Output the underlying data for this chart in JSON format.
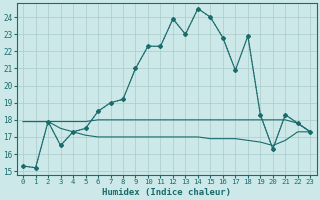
{
  "xlabel": "Humidex (Indice chaleur)",
  "bg_color": "#cce8e8",
  "grid_color": "#aacccc",
  "line_color": "#1a6b6b",
  "xlim": [
    -0.5,
    23.5
  ],
  "ylim": [
    14.8,
    24.8
  ],
  "yticks": [
    15,
    16,
    17,
    18,
    19,
    20,
    21,
    22,
    23,
    24
  ],
  "xticks": [
    0,
    1,
    2,
    3,
    4,
    5,
    6,
    7,
    8,
    9,
    10,
    11,
    12,
    13,
    14,
    15,
    16,
    17,
    18,
    19,
    20,
    21,
    22,
    23
  ],
  "series": [
    {
      "x": [
        0,
        1,
        2,
        3,
        4,
        5,
        6,
        7,
        8,
        9,
        10,
        11,
        12,
        13,
        14,
        15,
        16,
        17,
        18,
        19,
        20,
        21,
        22,
        23
      ],
      "y": [
        15.3,
        15.2,
        17.9,
        16.5,
        17.3,
        17.5,
        18.5,
        19.0,
        19.2,
        21.0,
        22.3,
        22.3,
        23.9,
        23.0,
        24.5,
        24.0,
        22.8,
        20.9,
        22.9,
        18.3,
        16.3,
        18.3,
        17.8,
        17.3
      ],
      "marker": "D",
      "markersize": 2.0,
      "linewidth": 0.8,
      "dotted": false
    },
    {
      "x": [
        0,
        1,
        2,
        3,
        4,
        5,
        6,
        7,
        8,
        9,
        10,
        11,
        12,
        13,
        14,
        15,
        16,
        17,
        18,
        19,
        20,
        21,
        22,
        23
      ],
      "y": [
        15.3,
        15.2,
        17.9,
        16.5,
        17.3,
        17.5,
        18.5,
        19.0,
        19.2,
        21.0,
        22.3,
        22.3,
        23.9,
        23.0,
        24.5,
        24.0,
        22.8,
        20.9,
        22.9,
        18.3,
        16.3,
        18.3,
        17.8,
        17.3
      ],
      "marker": "+",
      "markersize": 3.0,
      "linewidth": 0.8,
      "dotted": true
    },
    {
      "x": [
        0,
        1,
        2,
        3,
        4,
        5,
        6,
        7,
        8,
        9,
        10,
        11,
        12,
        13,
        14,
        15,
        16,
        17,
        18,
        19,
        20,
        21,
        22,
        23
      ],
      "y": [
        17.9,
        17.9,
        17.9,
        17.9,
        17.9,
        17.9,
        18.0,
        18.0,
        18.0,
        18.0,
        18.0,
        18.0,
        18.0,
        18.0,
        18.0,
        18.0,
        18.0,
        18.0,
        18.0,
        18.0,
        18.0,
        18.0,
        17.8,
        17.3
      ],
      "marker": null,
      "markersize": 0,
      "linewidth": 0.8,
      "dotted": false
    },
    {
      "x": [
        0,
        1,
        2,
        3,
        4,
        5,
        6,
        7,
        8,
        9,
        10,
        11,
        12,
        13,
        14,
        15,
        16,
        17,
        18,
        19,
        20,
        21,
        22,
        23
      ],
      "y": [
        17.9,
        17.9,
        17.9,
        17.5,
        17.3,
        17.1,
        17.0,
        17.0,
        17.0,
        17.0,
        17.0,
        17.0,
        17.0,
        17.0,
        17.0,
        16.9,
        16.9,
        16.9,
        16.8,
        16.7,
        16.5,
        16.8,
        17.3,
        17.3
      ],
      "marker": null,
      "markersize": 0,
      "linewidth": 0.8,
      "dotted": false
    }
  ]
}
